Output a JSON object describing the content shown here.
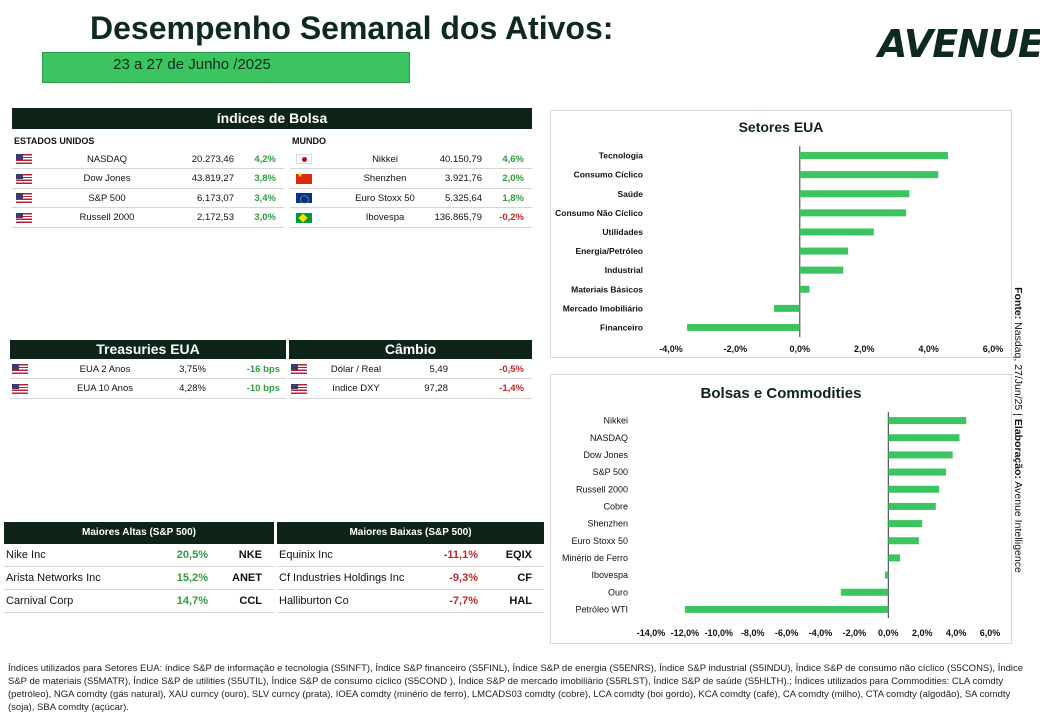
{
  "header": {
    "title": "Desempenho Semanal dos Ativos:",
    "subtitle": "23 a 27 de Junho /2025",
    "logo": "AVENUE"
  },
  "indices": {
    "title": "índices de Bolsa",
    "us_label": "ESTADOS UNIDOS",
    "world_label": "MUNDO",
    "us_rows": [
      {
        "flag": "us",
        "name": "NASDAQ",
        "value": "20.273,46",
        "change": "4,2%",
        "sign": "pos"
      },
      {
        "flag": "us",
        "name": "Dow Jones",
        "value": "43.819,27",
        "change": "3,8%",
        "sign": "pos"
      },
      {
        "flag": "us",
        "name": "S&P 500",
        "value": "6.173,07",
        "change": "3,4%",
        "sign": "pos"
      },
      {
        "flag": "us",
        "name": "Russell 2000",
        "value": "2.172,53",
        "change": "3,0%",
        "sign": "pos"
      }
    ],
    "world_rows": [
      {
        "flag": "jp",
        "name": "Nikkei",
        "value": "40.150,79",
        "change": "4,6%",
        "sign": "pos"
      },
      {
        "flag": "cn",
        "name": "Shenzhen",
        "value": "3.921,76",
        "change": "2,0%",
        "sign": "pos"
      },
      {
        "flag": "eu",
        "name": "Euro Stoxx 50",
        "value": "5.325,64",
        "change": "1,8%",
        "sign": "pos"
      },
      {
        "flag": "br",
        "name": "Ibovespa",
        "value": "136.865,79",
        "change": "-0,2%",
        "sign": "neg"
      }
    ]
  },
  "treasuries": {
    "title": "Treasuries EUA",
    "rows": [
      {
        "flag": "us",
        "name": "EUA 2 Anos",
        "value": "3,75%",
        "change": "-16 bps",
        "sign": "pos"
      },
      {
        "flag": "us",
        "name": "EUA 10 Anos",
        "value": "4,28%",
        "change": "-10 bps",
        "sign": "pos"
      }
    ]
  },
  "cambio": {
    "title": "Câmbio",
    "rows": [
      {
        "flag": "us",
        "name": "Dólar / Real",
        "value": "5,49",
        "change": "-0,5%",
        "sign": "neg"
      },
      {
        "flag": "us",
        "name": "índice DXY",
        "value": "97,28",
        "change": "-1,4%",
        "sign": "neg"
      }
    ]
  },
  "gainers": {
    "title": "Maiores Altas (S&P 500)",
    "rows": [
      {
        "name": "Nike Inc",
        "change": "20,5%",
        "ticker": "NKE"
      },
      {
        "name": "Arista Networks Inc",
        "change": "15,2%",
        "ticker": "ANET"
      },
      {
        "name": "Carnival Corp",
        "change": "14,7%",
        "ticker": "CCL"
      }
    ]
  },
  "losers": {
    "title": "Maiores Baixas (S&P 500)",
    "rows": [
      {
        "name": "Equinix Inc",
        "change": "-11,1%",
        "ticker": "EQIX"
      },
      {
        "name": "Cf Industries Holdings Inc",
        "change": "-9,3%",
        "ticker": "CF"
      },
      {
        "name": "Halliburton Co",
        "change": "-7,7%",
        "ticker": "HAL"
      }
    ]
  },
  "chart_data": [
    {
      "type": "bar",
      "orientation": "horizontal",
      "title": "Setores EUA",
      "categories": [
        "Tecnologia",
        "Consumo Cíclico",
        "Saúde",
        "Consumo Não Cíclico",
        "Utilidades",
        "Energia/Petróleo",
        "Industrial",
        "Materiais Básicos",
        "Mercado Imobiliário",
        "Financeiro"
      ],
      "values": [
        4.6,
        4.3,
        3.4,
        3.3,
        2.3,
        1.5,
        1.35,
        0.3,
        -0.8,
        -3.5
      ],
      "xlim": [
        -4,
        6
      ],
      "ticks": [
        -4,
        -2,
        0,
        2,
        4,
        6
      ],
      "tick_labels": [
        "-4,0%",
        "-2,0%",
        "0,0%",
        "2,0%",
        "4,0%",
        "6,0%"
      ],
      "color": "#3bc45f"
    },
    {
      "type": "bar",
      "orientation": "horizontal",
      "title": "Bolsas e Commodities",
      "categories": [
        "Nikkei",
        "NASDAQ",
        "Dow Jones",
        "S&P 500",
        "Russell 2000",
        "Cobre",
        "Shenzhen",
        "Euro Stoxx 50",
        "Minério de Ferro",
        "Ibovespa",
        "Ouro",
        "Petróleo WTI"
      ],
      "values": [
        4.6,
        4.2,
        3.8,
        3.4,
        3.0,
        2.8,
        2.0,
        1.8,
        0.7,
        -0.2,
        -2.8,
        -12.0
      ],
      "xlim": [
        -14,
        6
      ],
      "ticks": [
        -14,
        -12,
        -10,
        -8,
        -6,
        -4,
        -2,
        0,
        2,
        4,
        6
      ],
      "tick_labels": [
        "-14,0%",
        "-12,0%",
        "-10,0%",
        "-8,0%",
        "-6,0%",
        "-4,0%",
        "-2,0%",
        "0,0%",
        "2,0%",
        "4,0%",
        "6,0%"
      ],
      "color": "#3bc45f"
    }
  ],
  "source": {
    "label1": "Fonte:",
    "text1": " Nasdaq, 27/Jun/25 | ",
    "label2": "Elaboração:",
    "text2": " Avenue Intelligence"
  },
  "footnote": "Índices utilizados para Setores EUA: índice S&P de informação e tecnologia (S5INFT), Índice S&P financeiro (S5FINL), Índice S&P de energia (S5ENRS), Índice S&P industrial (S5INDU), Índice S&P de consumo não cíclico (S5CONS), Índice S&P de materiais (S5MATR), Índice S&P de utilities (S5UTIL), Índice S&P de consumo cíclico (S5COND ), Índice S&P de mercado imobiliário (S5RLST), Índice S&P de saúde (S5HLTH).; Índices utilizados para Commodities: CLA comdty (petróleo), NGA comdty (gás natural), XAU curncy (ouro), SLV curncy (prata), IOEA comdty (minério de ferro), LMCADS03 comdty (cobre), LCA comdty (boi gordo), KCA comdty (café), CA comdty (milho), CTA comdty (algodão), SA comdty (soja), SBA comdty (açúcar)."
}
